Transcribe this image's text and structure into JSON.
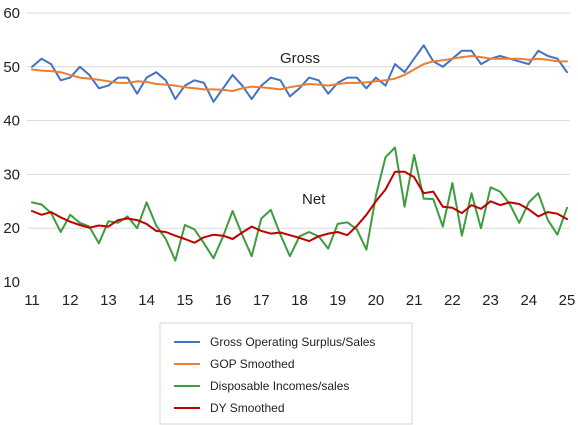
{
  "chart_data": {
    "type": "line",
    "x": [
      11.0,
      11.25,
      11.5,
      11.75,
      12.0,
      12.25,
      12.5,
      12.75,
      13.0,
      13.25,
      13.5,
      13.75,
      14.0,
      14.25,
      14.5,
      14.75,
      15.0,
      15.25,
      15.5,
      15.75,
      16.0,
      16.25,
      16.5,
      16.75,
      17.0,
      17.25,
      17.5,
      17.75,
      18.0,
      18.25,
      18.5,
      18.75,
      19.0,
      19.25,
      19.5,
      19.75,
      20.0,
      20.25,
      20.5,
      20.75,
      21.0,
      21.25,
      21.5,
      21.75,
      22.0,
      22.25,
      22.5,
      22.75,
      23.0,
      23.25,
      23.5,
      23.75,
      24.0,
      24.25,
      24.5,
      24.75,
      25.0
    ],
    "xticks": [
      11,
      12,
      13,
      14,
      15,
      16,
      17,
      18,
      19,
      20,
      21,
      22,
      23,
      24,
      25
    ],
    "ylim": [
      10,
      60
    ],
    "yticks": [
      10,
      20,
      30,
      40,
      50,
      60
    ],
    "series": [
      {
        "name": "Gross Operating Surplus/Sales",
        "color": "#4472C4",
        "values": [
          50,
          51.5,
          50.5,
          47.5,
          48,
          50,
          48.5,
          46,
          46.5,
          48,
          48,
          45,
          48,
          49,
          47.5,
          44,
          46.5,
          47.5,
          47,
          43.5,
          46,
          48.5,
          46.5,
          44,
          46.5,
          48,
          47.5,
          44.5,
          46,
          48,
          47.5,
          45,
          47,
          48,
          48,
          46,
          48,
          46.5,
          50.5,
          49,
          51.5,
          54,
          51,
          50,
          51.5,
          53,
          53,
          50.5,
          51.5,
          52,
          51.5,
          51,
          50.5,
          53,
          52,
          51.5,
          49
        ]
      },
      {
        "name": "GOP Smoothed",
        "color": "#ED7D31",
        "values": [
          49.5,
          49.3,
          49.2,
          49,
          48.5,
          48,
          47.8,
          47.6,
          47.3,
          47,
          47,
          47.3,
          47.2,
          46.8,
          46.7,
          46.5,
          46.2,
          46,
          45.8,
          45.8,
          45.7,
          45.5,
          46,
          46.3,
          46.2,
          46,
          45.8,
          46.2,
          46.5,
          46.8,
          46.7,
          46.5,
          46.8,
          47,
          47,
          47.1,
          47.3,
          47.5,
          47.8,
          48.5,
          49.5,
          50.5,
          51,
          51.2,
          51.5,
          51.8,
          52,
          51.8,
          51.5,
          51.5,
          51.5,
          51.5,
          51.3,
          51.5,
          51.3,
          51,
          51
        ]
      },
      {
        "name": "Disposable Incomes/sales",
        "color": "#3E9C3E",
        "values": [
          24.8,
          24.4,
          22.8,
          19.3,
          22.5,
          21,
          20.3,
          17.2,
          21.3,
          21,
          22.2,
          20,
          24.8,
          20.5,
          18,
          14,
          20.6,
          19.8,
          17.2,
          14.4,
          18.5,
          23.2,
          18.8,
          14.8,
          21.8,
          23.4,
          18.8,
          14.8,
          18.5,
          19.3,
          18.5,
          16.2,
          20.8,
          21.1,
          19.8,
          16,
          26,
          33.2,
          35,
          24,
          33.6,
          25.5,
          25.4,
          20.3,
          28.4,
          18.6,
          26.5,
          20,
          27.6,
          26.8,
          24.5,
          21,
          24.8,
          26.5,
          21.5,
          18.8,
          23.8
        ]
      },
      {
        "name": "DY Smoothed",
        "color": "#C00000",
        "values": [
          23.2,
          22.5,
          23,
          22,
          21.2,
          20.6,
          20.1,
          20.5,
          20.3,
          21.5,
          21.8,
          21.5,
          20.8,
          19.5,
          19.3,
          18.6,
          18,
          17.3,
          18.3,
          18.8,
          18.6,
          18,
          19.2,
          20.3,
          19.5,
          19,
          19.2,
          18.7,
          18.2,
          17.6,
          18.5,
          19,
          19.3,
          18.7,
          20.4,
          22.5,
          25,
          27.2,
          30.5,
          30.5,
          29.5,
          26.5,
          26.8,
          24,
          23.8,
          22.8,
          24.3,
          23.6,
          25,
          24.3,
          24.8,
          24.5,
          23.5,
          22.2,
          23,
          22.7,
          21.7
        ]
      }
    ],
    "annotations": [
      "Gross",
      "Net"
    ],
    "grid": "horizontal",
    "legend_position": "bottom"
  }
}
